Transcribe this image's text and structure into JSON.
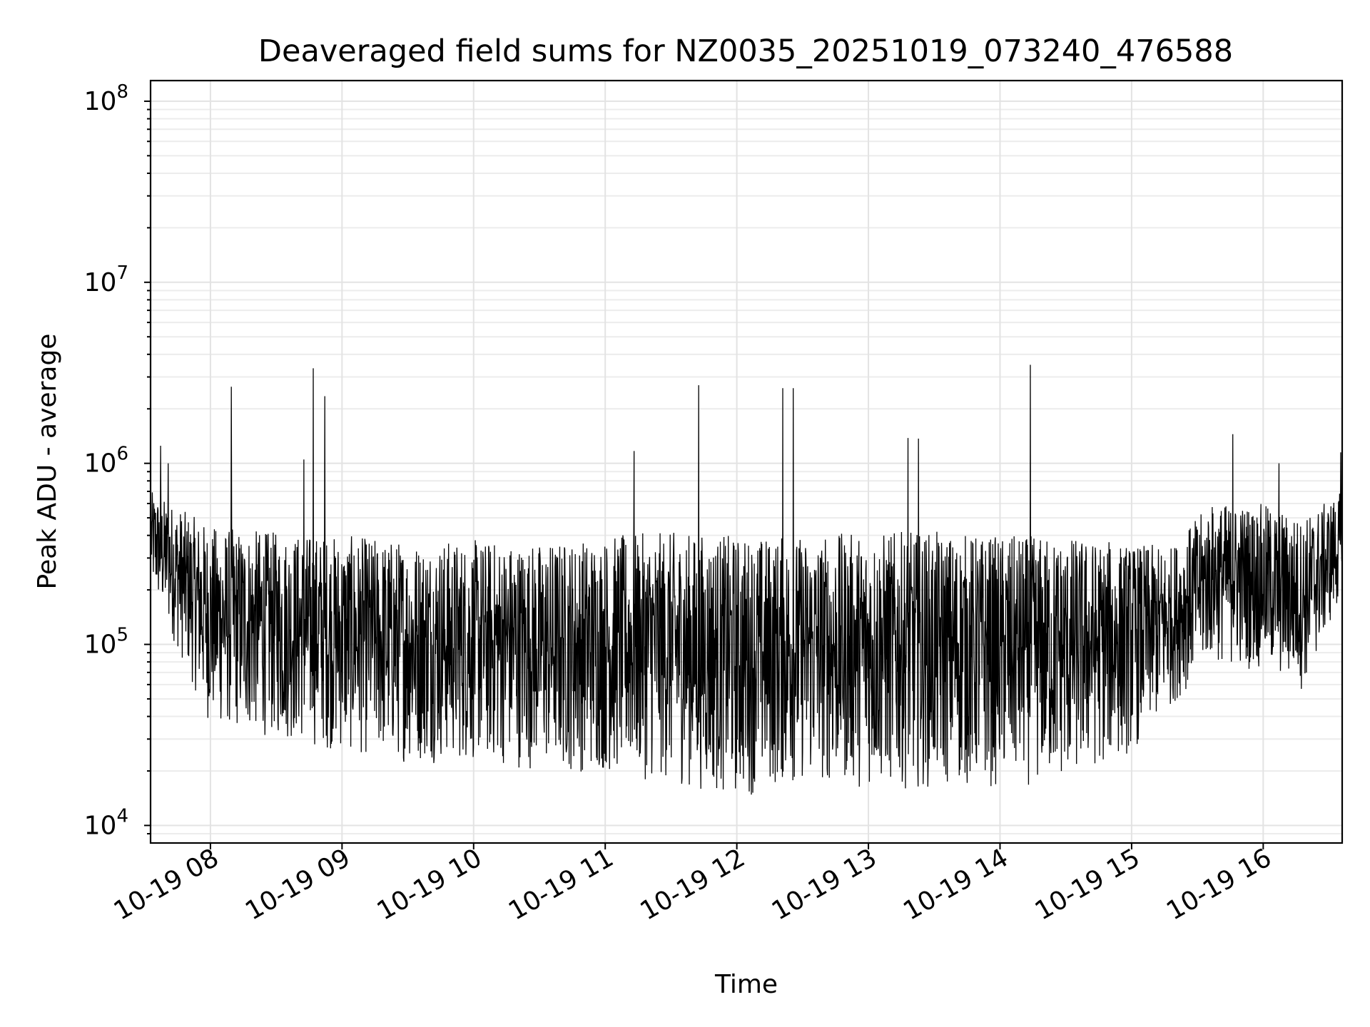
{
  "chart_data": {
    "type": "line",
    "title": "Deaveraged field sums for NZ0035_20251019_073240_476588",
    "xlabel": "Time",
    "ylabel": "Peak ADU - average",
    "yscale": "log",
    "ylim": [
      8000,
      130000000
    ],
    "y_ticks": [
      {
        "value": 10000,
        "base": "10",
        "exp": "4"
      },
      {
        "value": 100000,
        "base": "10",
        "exp": "5"
      },
      {
        "value": 1000000,
        "base": "10",
        "exp": "6"
      },
      {
        "value": 10000000,
        "base": "10",
        "exp": "7"
      },
      {
        "value": 100000000,
        "base": "10",
        "exp": "8"
      }
    ],
    "xlim_hours": [
      7.545,
      16.6
    ],
    "x_ticks": [
      {
        "hour": 8,
        "label": "10-19 08"
      },
      {
        "hour": 9,
        "label": "10-19 09"
      },
      {
        "hour": 10,
        "label": "10-19 10"
      },
      {
        "hour": 11,
        "label": "10-19 11"
      },
      {
        "hour": 12,
        "label": "10-19 12"
      },
      {
        "hour": 13,
        "label": "10-19 13"
      },
      {
        "hour": 14,
        "label": "10-19 14"
      },
      {
        "hour": 15,
        "label": "10-19 15"
      },
      {
        "hour": 16,
        "label": "10-19 16"
      }
    ],
    "grid": true,
    "series": [
      {
        "name": "Deaveraged field sum",
        "color": "#000000",
        "sample_count": 3300,
        "envelope_note": "dense noisy trace; points below are digitized upper/lower envelope values (data units)",
        "upper_envelope": [
          {
            "hour": 7.55,
            "value": 700000
          },
          {
            "hour": 8.0,
            "value": 450000
          },
          {
            "hour": 8.5,
            "value": 420000
          },
          {
            "hour": 9.0,
            "value": 400000
          },
          {
            "hour": 9.5,
            "value": 380000
          },
          {
            "hour": 10.0,
            "value": 380000
          },
          {
            "hour": 10.5,
            "value": 370000
          },
          {
            "hour": 11.0,
            "value": 400000
          },
          {
            "hour": 11.5,
            "value": 420000
          },
          {
            "hour": 12.0,
            "value": 400000
          },
          {
            "hour": 12.5,
            "value": 400000
          },
          {
            "hour": 13.0,
            "value": 420000
          },
          {
            "hour": 13.5,
            "value": 420000
          },
          {
            "hour": 14.0,
            "value": 400000
          },
          {
            "hour": 14.5,
            "value": 400000
          },
          {
            "hour": 15.0,
            "value": 360000
          },
          {
            "hour": 15.3,
            "value": 350000
          },
          {
            "hour": 15.6,
            "value": 600000
          },
          {
            "hour": 16.0,
            "value": 600000
          },
          {
            "hour": 16.3,
            "value": 500000
          },
          {
            "hour": 16.6,
            "value": 700000
          }
        ],
        "lower_envelope": [
          {
            "hour": 7.55,
            "value": 200000
          },
          {
            "hour": 8.0,
            "value": 35000
          },
          {
            "hour": 8.5,
            "value": 30000
          },
          {
            "hour": 9.0,
            "value": 25000
          },
          {
            "hour": 9.5,
            "value": 22000
          },
          {
            "hour": 10.0,
            "value": 22000
          },
          {
            "hour": 10.5,
            "value": 20000
          },
          {
            "hour": 11.0,
            "value": 19000
          },
          {
            "hour": 11.5,
            "value": 17000
          },
          {
            "hour": 12.0,
            "value": 14000
          },
          {
            "hour": 12.5,
            "value": 17000
          },
          {
            "hour": 13.0,
            "value": 16000
          },
          {
            "hour": 13.5,
            "value": 16000
          },
          {
            "hour": 14.0,
            "value": 16000
          },
          {
            "hour": 14.5,
            "value": 17000
          },
          {
            "hour": 15.0,
            "value": 25000
          },
          {
            "hour": 15.3,
            "value": 45000
          },
          {
            "hour": 15.6,
            "value": 80000
          },
          {
            "hour": 16.0,
            "value": 70000
          },
          {
            "hour": 16.3,
            "value": 55000
          },
          {
            "hour": 16.6,
            "value": 180000
          }
        ],
        "spikes": [
          {
            "hour": 7.62,
            "value": 1250000
          },
          {
            "hour": 7.68,
            "value": 1000000
          },
          {
            "hour": 8.16,
            "value": 2650000
          },
          {
            "hour": 8.71,
            "value": 1050000
          },
          {
            "hour": 8.78,
            "value": 3350000
          },
          {
            "hour": 8.87,
            "value": 2350000
          },
          {
            "hour": 11.22,
            "value": 1170000
          },
          {
            "hour": 11.71,
            "value": 2700000
          },
          {
            "hour": 12.35,
            "value": 2600000
          },
          {
            "hour": 12.43,
            "value": 2600000
          },
          {
            "hour": 13.3,
            "value": 1380000
          },
          {
            "hour": 13.38,
            "value": 1370000
          },
          {
            "hour": 14.23,
            "value": 3500000
          },
          {
            "hour": 15.77,
            "value": 1450000
          },
          {
            "hour": 16.12,
            "value": 1000000
          },
          {
            "hour": 16.59,
            "value": 1150000
          }
        ]
      }
    ]
  }
}
